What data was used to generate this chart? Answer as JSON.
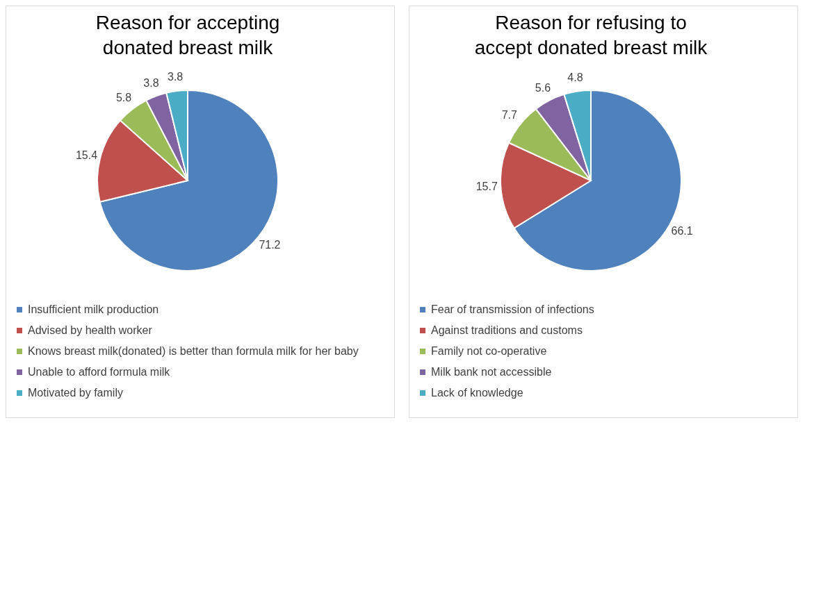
{
  "chart_data": [
    {
      "type": "pie",
      "title": "Reason for accepting donated breast milk",
      "categories": [
        "Insufficient milk production",
        "Advised by health worker",
        "Knows breast milk(donated) is better than formula milk for her baby",
        "Unable to afford formula milk",
        "Motivated by family"
      ],
      "values": [
        71.2,
        15.4,
        5.8,
        3.8,
        3.8
      ],
      "colors": [
        "#4f81bd",
        "#c0504d",
        "#9bbb59",
        "#8064a2",
        "#4bacc6"
      ],
      "data_labels": true,
      "legend": "bottom"
    },
    {
      "type": "pie",
      "title": "Reason for refusing to accept donated breast milk",
      "categories": [
        "Fear of transmission of infections",
        "Against traditions and customs",
        "Family not co-operative",
        "Milk bank not accessible",
        "Lack of knowledge"
      ],
      "values": [
        66.1,
        15.7,
        7.7,
        5.6,
        4.8
      ],
      "colors": [
        "#4f81bd",
        "#c0504d",
        "#9bbb59",
        "#8064a2",
        "#4bacc6"
      ],
      "data_labels": true,
      "legend": "bottom"
    }
  ]
}
